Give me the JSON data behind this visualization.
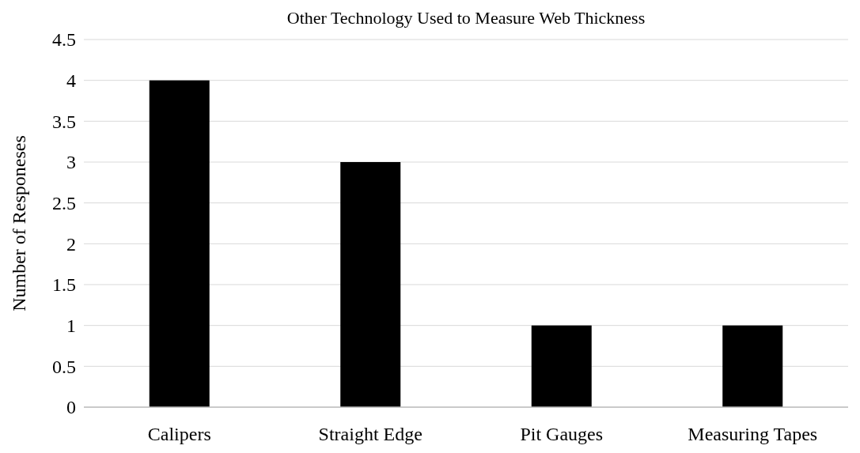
{
  "chart_data": {
    "type": "bar",
    "title": "Other Technology Used to Measure Web Thickness",
    "ylabel": "Number of Responeses",
    "categories": [
      "Calipers",
      "Straight Edge",
      "Pit Gauges",
      "Measuring Tapes"
    ],
    "values": [
      4,
      3,
      1,
      1
    ],
    "color": "#000000",
    "ylim": [
      0,
      4.5
    ],
    "yticks": [
      0,
      0.5,
      1,
      1.5,
      2,
      2.5,
      3,
      3.5,
      4,
      4.5
    ],
    "grid": "y"
  }
}
